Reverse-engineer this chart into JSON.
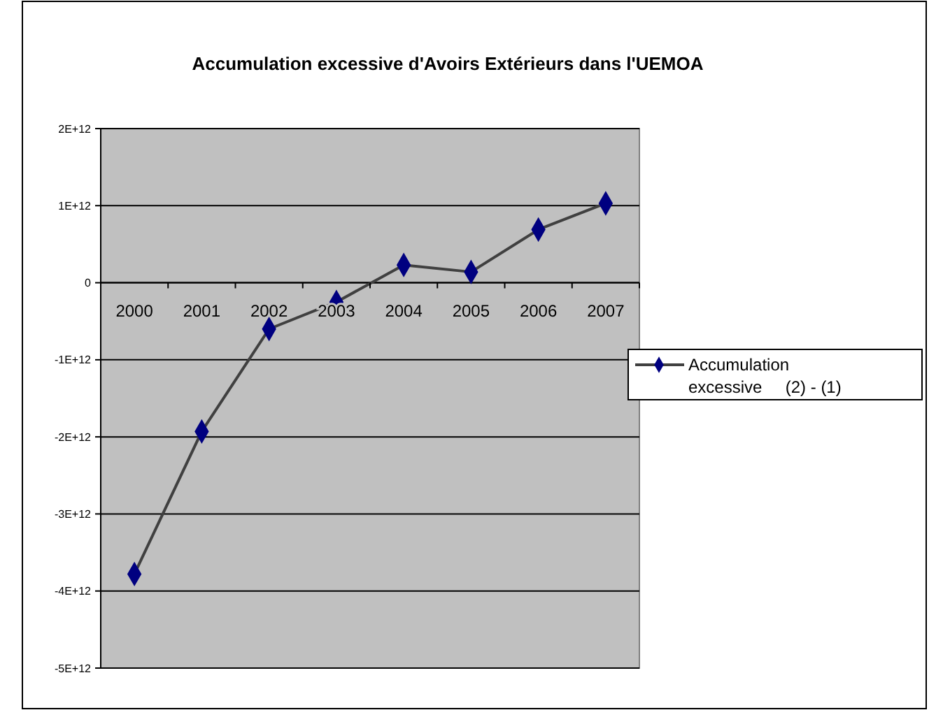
{
  "chart_data": {
    "type": "line",
    "title": "Accumulation excessive d'Avoirs Extérieurs dans l'UEMOA",
    "categories": [
      "2000",
      "2001",
      "2002",
      "2003",
      "2004",
      "2005",
      "2006",
      "2007"
    ],
    "series": [
      {
        "name": "Accumulation excessive     (2) - (1)",
        "color": "#000080",
        "values": [
          -3780000000000.0,
          -1930000000000.0,
          -600000000000.0,
          -250000000000.0,
          230000000000.0,
          140000000000.0,
          690000000000.0,
          1030000000000.0
        ]
      }
    ],
    "ylim": [
      -5000000000000.0,
      2000000000000.0
    ],
    "yticks": [
      {
        "value": -5000000000000.0,
        "label": "-5E+12"
      },
      {
        "value": -4000000000000.0,
        "label": "-4E+12"
      },
      {
        "value": -3000000000000.0,
        "label": "-3E+12"
      },
      {
        "value": -2000000000000.0,
        "label": "-2E+12"
      },
      {
        "value": -1000000000000.0,
        "label": "-1E+12"
      },
      0,
      {
        "value": 1000000000000.0,
        "label": "1E+12"
      },
      {
        "value": 2000000000000.0,
        "label": "2E+12"
      }
    ],
    "grid": "y",
    "legend": "right",
    "marker": "diamond",
    "line_style": "solid"
  }
}
